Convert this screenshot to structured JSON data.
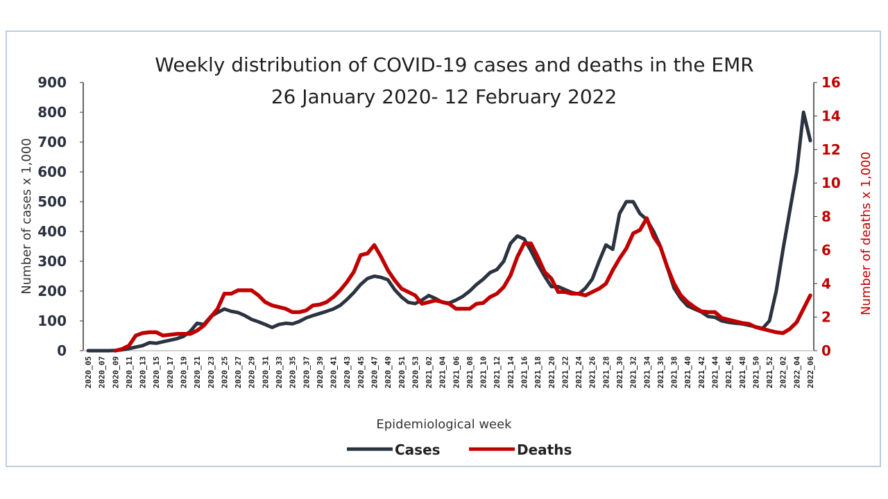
{
  "chart_data": {
    "type": "line",
    "title": "Weekly distribution of COVID-19 cases and deaths in the EMR",
    "subtitle": "26 January 2020- 12 February 2022",
    "xlabel": "Epidemiological week",
    "ylabel": "Number of cases x 1,000",
    "y2label": "Number of deaths x 1,000",
    "ylim": [
      0,
      900
    ],
    "y2lim": [
      0,
      16
    ],
    "yticks": [
      "0",
      "100",
      "200",
      "300",
      "400",
      "500",
      "600",
      "700",
      "800",
      "900"
    ],
    "y2ticks": [
      "0",
      "2",
      "4",
      "6",
      "8",
      "10",
      "12",
      "14",
      "16"
    ],
    "legend": "bottom",
    "series": [
      {
        "name": "Cases",
        "axis": "left",
        "color": "#2b3340",
        "values": [
          0,
          0,
          0,
          0,
          1,
          3,
          7,
          12,
          17,
          27,
          25,
          30,
          35,
          40,
          48,
          65,
          92,
          88,
          115,
          128,
          140,
          132,
          128,
          118,
          105,
          97,
          88,
          78,
          88,
          92,
          90,
          98,
          110,
          118,
          125,
          132,
          140,
          152,
          172,
          195,
          222,
          242,
          250,
          246,
          238,
          205,
          180,
          162,
          158,
          170,
          185,
          175,
          162,
          160,
          170,
          182,
          200,
          222,
          240,
          262,
          272,
          300,
          360,
          385,
          375,
          335,
          290,
          250,
          215,
          215,
          205,
          195,
          190,
          210,
          240,
          300,
          355,
          340,
          460,
          500,
          500,
          460,
          440,
          400,
          350,
          280,
          210,
          175,
          150,
          140,
          130,
          115,
          112,
          100,
          95,
          92,
          90,
          85,
          80,
          75,
          100,
          200,
          340,
          470,
          600,
          800,
          705
        ]
      },
      {
        "name": "Deaths",
        "axis": "right",
        "color": "#c00000",
        "values": [
          null,
          null,
          null,
          null,
          0,
          0.1,
          0.3,
          0.9,
          1.05,
          1.1,
          1.1,
          0.9,
          0.95,
          1.0,
          1.0,
          1.0,
          1.2,
          1.5,
          2.0,
          2.5,
          3.4,
          3.4,
          3.6,
          3.6,
          3.6,
          3.3,
          2.9,
          2.7,
          2.6,
          2.5,
          2.3,
          2.3,
          2.4,
          2.7,
          2.75,
          2.9,
          3.2,
          3.6,
          4.1,
          4.7,
          5.7,
          5.8,
          6.3,
          5.6,
          4.8,
          4.2,
          3.7,
          3.5,
          3.3,
          2.8,
          2.9,
          3.0,
          2.9,
          2.8,
          2.5,
          2.5,
          2.5,
          2.8,
          2.85,
          3.2,
          3.4,
          3.8,
          4.5,
          5.6,
          6.4,
          6.4,
          5.6,
          4.7,
          4.3,
          3.5,
          3.5,
          3.4,
          3.4,
          3.3,
          3.5,
          3.7,
          4.0,
          4.8,
          5.5,
          6.1,
          7.0,
          7.2,
          7.9,
          6.8,
          6.2,
          5.0,
          4.0,
          3.3,
          2.9,
          2.6,
          2.35,
          2.3,
          2.3,
          1.95,
          1.85,
          1.75,
          1.65,
          1.6,
          1.4,
          1.3,
          1.2,
          1.1,
          1.05,
          1.3,
          1.7,
          2.5,
          3.3
        ]
      }
    ]
  }
}
